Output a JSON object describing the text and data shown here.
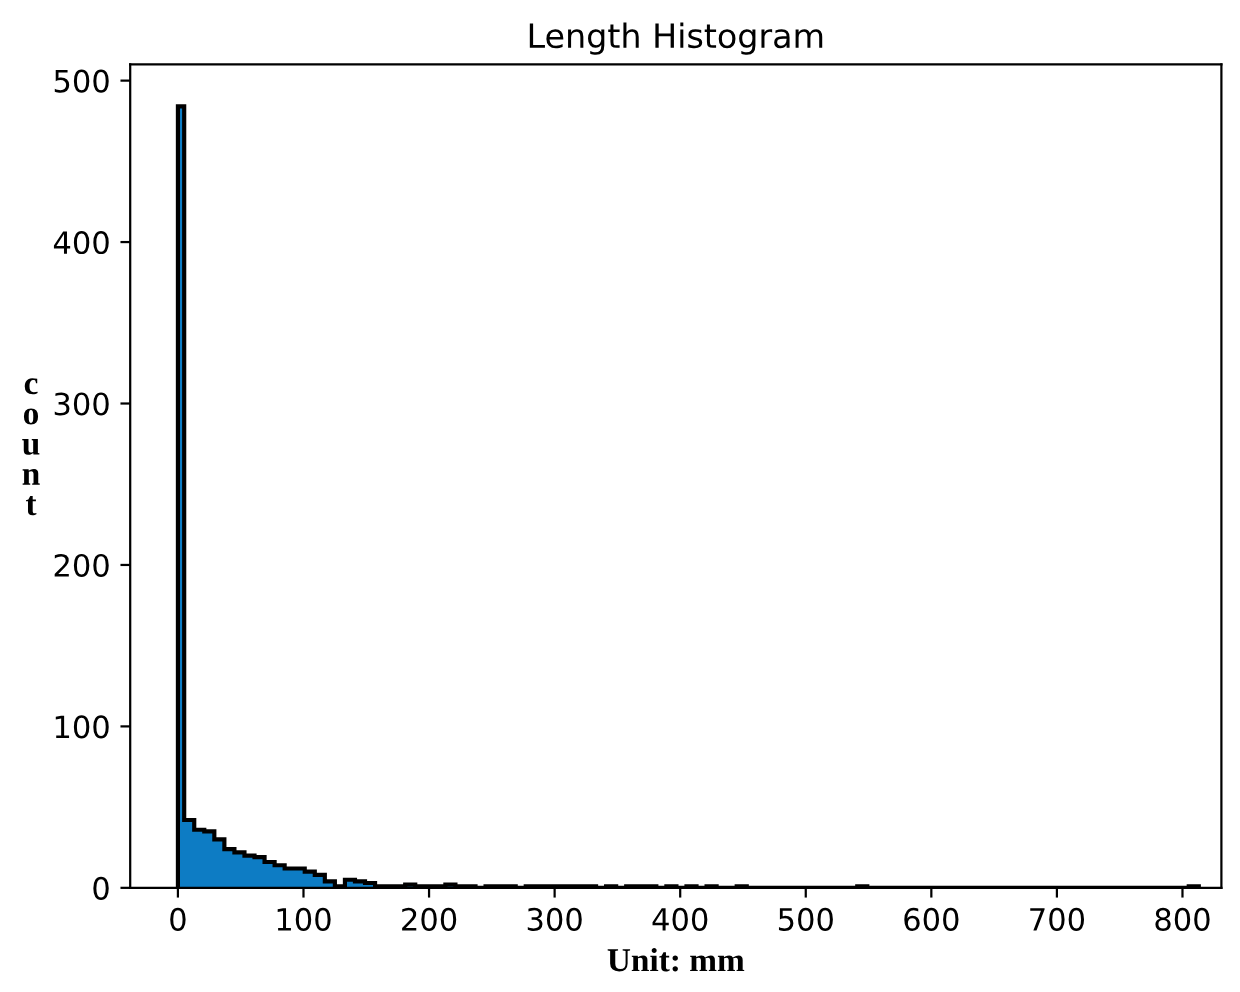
{
  "chart_data": {
    "type": "histogram",
    "title": "Length Histogram",
    "xlabel": "Unit: mm",
    "ylabel": "count",
    "color": "#0d7cc4",
    "bins": [
      0,
      5,
      13,
      21,
      29,
      37,
      45,
      53,
      61,
      69,
      77,
      85,
      93,
      101,
      109,
      117,
      125,
      133,
      141,
      149,
      157,
      165,
      173,
      181,
      189,
      197,
      205,
      213,
      221,
      229,
      237,
      245,
      253,
      261,
      269,
      277,
      285,
      293,
      301,
      309,
      317,
      325,
      333,
      341,
      349,
      357,
      365,
      373,
      381,
      389,
      397,
      405,
      413,
      421,
      429,
      437,
      445,
      453,
      461,
      469,
      477,
      485,
      493,
      501,
      509,
      517,
      525,
      533,
      541,
      549,
      557,
      565,
      573,
      581,
      589,
      597,
      605,
      613,
      621,
      629,
      637,
      645,
      653,
      661,
      669,
      677,
      685,
      693,
      701,
      709,
      717,
      725,
      733,
      741,
      749,
      757,
      765,
      773,
      781,
      789,
      797,
      805,
      813
    ],
    "values": [
      484,
      42,
      36,
      35,
      30,
      24,
      22,
      20,
      19,
      16,
      14,
      12,
      12,
      10,
      8,
      4,
      1,
      5,
      4,
      3,
      1,
      1,
      1,
      2,
      1,
      1,
      1,
      2,
      1,
      1,
      0,
      1,
      1,
      1,
      0,
      1,
      1,
      1,
      1,
      1,
      1,
      1,
      0,
      1,
      0,
      1,
      1,
      1,
      0,
      1,
      0,
      1,
      0,
      1,
      0,
      0,
      1,
      0,
      0,
      0,
      0,
      0,
      0,
      0,
      0,
      0,
      0,
      0,
      1,
      0,
      0,
      0,
      0,
      0,
      0,
      0,
      0,
      0,
      0,
      0,
      0,
      0,
      0,
      0,
      0,
      0,
      0,
      0,
      0,
      0,
      0,
      0,
      0,
      0,
      0,
      0,
      0,
      0,
      0,
      0,
      0,
      1
    ],
    "xlim": [
      -38,
      831
    ],
    "ylim": [
      0,
      510
    ],
    "xticks": [
      0,
      100,
      200,
      300,
      400,
      500,
      600,
      700,
      800
    ],
    "yticks": [
      0,
      100,
      200,
      300,
      400,
      500
    ],
    "grid": false
  }
}
